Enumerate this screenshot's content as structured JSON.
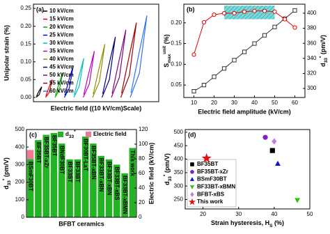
{
  "chart_data": [
    {
      "type": "loops",
      "panel_label": "(a)",
      "xlabel": "Electric field ((10 kV/cm)Scale)",
      "ylabel": "Unipolar strain (%)",
      "ylim": [
        -0.012,
        0.262
      ],
      "yticks": [
        {
          "value": 0,
          "label": "0.00"
        },
        {
          "value": 0.05,
          "label": "0.05"
        },
        {
          "value": 0.1,
          "label": "0.10"
        },
        {
          "value": 0.15,
          "label": "0.15"
        },
        {
          "value": 0.2,
          "label": "0.20"
        },
        {
          "value": 0.25,
          "label": "0.25"
        }
      ],
      "series": [
        {
          "name": "10 kV/cm",
          "color": "#000000",
          "values": [
            0,
            0.008,
            0.03,
            0.018,
            0.003
          ]
        },
        {
          "name": "15 kV/cm",
          "color": "#e00000",
          "values": [
            0,
            0.014,
            0.05,
            0.028,
            0.004
          ]
        },
        {
          "name": "20 kV/cm",
          "color": "#00b000",
          "values": [
            0,
            0.02,
            0.07,
            0.038,
            0.005
          ]
        },
        {
          "name": "25 kV/cm",
          "color": "#0000e0",
          "values": [
            0,
            0.026,
            0.09,
            0.048,
            0.006
          ]
        },
        {
          "name": "30 kV/cm",
          "color": "#00c0c0",
          "values": [
            0,
            0.032,
            0.11,
            0.058,
            0.007
          ]
        },
        {
          "name": "35 kV/cm",
          "color": "#c000c0",
          "values": [
            0,
            0.038,
            0.13,
            0.068,
            0.008
          ]
        },
        {
          "name": "40 kV/cm",
          "color": "#909000",
          "values": [
            0,
            0.044,
            0.15,
            0.078,
            0.009
          ]
        },
        {
          "name": "45 kV/cm",
          "color": "#000080",
          "values": [
            0,
            0.05,
            0.17,
            0.088,
            0.01
          ]
        },
        {
          "name": "50 kV/cm",
          "color": "#800080",
          "values": [
            0,
            0.056,
            0.19,
            0.098,
            0.011
          ]
        },
        {
          "name": "55 kV/cm",
          "color": "#a00000",
          "values": [
            0,
            0.062,
            0.21,
            0.108,
            0.012
          ]
        },
        {
          "name": "60 kV/cm",
          "color": "#3070ff",
          "values": [
            0,
            0.068,
            0.23,
            0.118,
            0.013
          ]
        }
      ]
    },
    {
      "type": "dual_line",
      "panel_label": "(b)",
      "xlabel": "Electric field amplitude (kV/cm)",
      "ylabel": {
        "main": "S",
        "sub": "max",
        "sup": "unit",
        "unit": " (%)"
      },
      "y2label": {
        "main": "d",
        "sub": "33",
        "sup": "*",
        "unit": " (pm/V)"
      },
      "x": [
        10,
        15,
        20,
        25,
        30,
        35,
        40,
        45,
        50,
        55,
        60
      ],
      "xlim": [
        5,
        65
      ],
      "xticks": [
        10,
        20,
        30,
        40,
        50,
        60
      ],
      "ylim": [
        0.02,
        0.245
      ],
      "yticks": [
        {
          "value": 0.05,
          "label": "0.05"
        },
        {
          "value": 0.1,
          "label": "0.10"
        },
        {
          "value": 0.15,
          "label": "0.15"
        },
        {
          "value": 0.2,
          "label": "0.20"
        }
      ],
      "y2lim": [
        288,
        412
      ],
      "y2ticks": [
        300,
        320,
        340,
        360,
        380,
        400
      ],
      "series": [
        {
          "color": "#333333",
          "marker": "square",
          "values": [
            0.035,
            0.05,
            0.07,
            0.09,
            0.11,
            0.13,
            0.15,
            0.17,
            0.19,
            0.21,
            0.23
          ]
        },
        {
          "color": "#e00000",
          "marker": "circle",
          "axis": "y2",
          "values": [
            345,
            388,
            398,
            400,
            400,
            402,
            403,
            403,
            402,
            392,
            381
          ]
        }
      ]
    },
    {
      "type": "bar",
      "panel_label": "(c)",
      "xlabel": "BFBT ceramics",
      "ylabel": {
        "main": "d",
        "sub": "33",
        "sup": "*",
        "unit": " (pm/V)"
      },
      "y2label": "Electric field (kV/cm)",
      "categories": [
        "BSmF30BT",
        "BF35BT",
        "BF35BT-xZr",
        "BF35BT",
        "BNdF30BT",
        "BF33BT",
        "BF33BT",
        "BF30BT-LaT",
        "BF35BT-xBN",
        "BF33BT-xBN",
        "BF33BT-xBN",
        "BF33BT-xBS",
        "BF33BT-xBMN",
        "This work"
      ],
      "ylim": [
        0,
        500
      ],
      "yticks": [
        0,
        100,
        200,
        300,
        400,
        500
      ],
      "y2lim": [
        0,
        120
      ],
      "y2ticks": [
        0,
        20,
        40,
        60,
        80,
        100,
        120
      ],
      "series": [
        {
          "name": {
            "main": "d",
            "sub": "33",
            "sup": "*"
          },
          "color": "#22b422",
          "values": [
            330,
            440,
            470,
            480,
            420,
            330,
            330,
            460,
            420,
            350,
            330,
            300,
            250,
            395
          ]
        },
        {
          "name": "Electric field",
          "color": "#f07890",
          "axis": "y2",
          "values": [
            92,
            60,
            65,
            62,
            60,
            55,
            55,
            60,
            58,
            55,
            55,
            50,
            40,
            60
          ]
        }
      ]
    },
    {
      "type": "scatter",
      "panel_label": "(d)",
      "xlabel": {
        "main": "Strain hysteresis, H",
        "sub": "S",
        "unit": " (%)"
      },
      "ylabel": {
        "main": "d",
        "sub": "33",
        "sup": "*",
        "unit": " (pm/V)"
      },
      "xlim": [
        15,
        50
      ],
      "xticks": [
        20,
        30,
        40,
        50
      ],
      "ylim": [
        215,
        510
      ],
      "yticks": [
        250,
        300,
        350,
        400,
        450,
        500
      ],
      "series": [
        {
          "name": "BF35BT",
          "color": "#000000",
          "marker": "square",
          "x": [
            39.5
          ],
          "values": [
            432
          ]
        },
        {
          "name": "BF35BT-xZr",
          "color": "#8020c0",
          "marker": "circle",
          "x": [
            37.5
          ],
          "values": [
            481
          ]
        },
        {
          "name": "BSmF30BT",
          "color": "#1010d0",
          "marker": "triangle",
          "x": [
            41
          ],
          "values": [
            383
          ]
        },
        {
          "name": "BF33BT-xBMN",
          "color": "#30c010",
          "marker": "triangle-down",
          "x": [
            46.5
          ],
          "values": [
            248
          ]
        },
        {
          "name": "BFBT-xBS",
          "color": "#c080e0",
          "marker": "diamond",
          "x": [
            40
          ],
          "values": [
            466
          ]
        },
        {
          "name": "This work",
          "color": "#e01010",
          "marker": "star",
          "x": [
            21
          ],
          "values": [
            403
          ]
        }
      ]
    }
  ]
}
